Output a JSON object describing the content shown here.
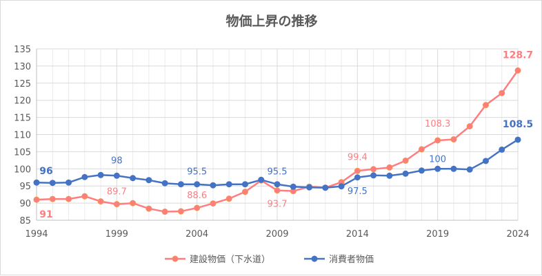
{
  "chart_data": {
    "type": "line",
    "title": "物価上昇の推移",
    "xlabel": "",
    "ylabel": "",
    "x": [
      1994,
      1995,
      1996,
      1997,
      1998,
      1999,
      2000,
      2001,
      2002,
      2003,
      2004,
      2005,
      2006,
      2007,
      2008,
      2009,
      2010,
      2011,
      2012,
      2013,
      2014,
      2015,
      2016,
      2017,
      2018,
      2019,
      2020,
      2021,
      2022,
      2023,
      2024
    ],
    "xticks": [
      "1994",
      "1999",
      "2004",
      "2009",
      "2014",
      "2019",
      "2024"
    ],
    "yticks": [
      "85",
      "90",
      "95",
      "100",
      "105",
      "110",
      "115",
      "120",
      "125",
      "130",
      "135"
    ],
    "xlim": [
      1994,
      2024
    ],
    "ylim": [
      85,
      135
    ],
    "grid": true,
    "legend_position": "bottom",
    "series": [
      {
        "name": "建設物価（下水道）",
        "color": "#FF7C80",
        "marker_edge": "#F4934A",
        "values": [
          91,
          91.2,
          91.2,
          92,
          90.5,
          89.7,
          90,
          88.4,
          87.5,
          87.6,
          88.6,
          89.9,
          91.3,
          93.3,
          96.6,
          93.7,
          93.5,
          94.8,
          94.5,
          96.1,
          99.4,
          99.9,
          100.4,
          102.4,
          105.7,
          108.3,
          108.6,
          112.4,
          118.6,
          122.1,
          128.7
        ],
        "labels": [
          {
            "year": 1994,
            "text": "91",
            "bold": true
          },
          {
            "year": 1999,
            "text": "89.7",
            "bold": false
          },
          {
            "year": 2004,
            "text": "88.6",
            "bold": false
          },
          {
            "year": 2009,
            "text": "93.7",
            "bold": false
          },
          {
            "year": 2014,
            "text": "99.4",
            "bold": false
          },
          {
            "year": 2019,
            "text": "108.3",
            "bold": false
          },
          {
            "year": 2024,
            "text": "128.7",
            "bold": true
          }
        ]
      },
      {
        "name": "消費者物価",
        "color": "#4472C4",
        "marker_edge": "#4472C4",
        "values": [
          96,
          95.9,
          96,
          97.6,
          98.2,
          98,
          97.3,
          96.7,
          95.8,
          95.5,
          95.5,
          95.2,
          95.5,
          95.5,
          96.8,
          95.5,
          94.8,
          94.6,
          94.5,
          94.9,
          97.5,
          98.1,
          98,
          98.6,
          99.5,
          100,
          100,
          99.8,
          102.3,
          105.6,
          108.5
        ],
        "labels": [
          {
            "year": 1994,
            "text": "96",
            "bold": true
          },
          {
            "year": 1999,
            "text": "98",
            "bold": false
          },
          {
            "year": 2004,
            "text": "95.5",
            "bold": false
          },
          {
            "year": 2009,
            "text": "95.5",
            "bold": false
          },
          {
            "year": 2014,
            "text": "97.5",
            "bold": false
          },
          {
            "year": 2019,
            "text": "100",
            "bold": false
          },
          {
            "year": 2024,
            "text": "108.5",
            "bold": true
          }
        ]
      }
    ]
  }
}
